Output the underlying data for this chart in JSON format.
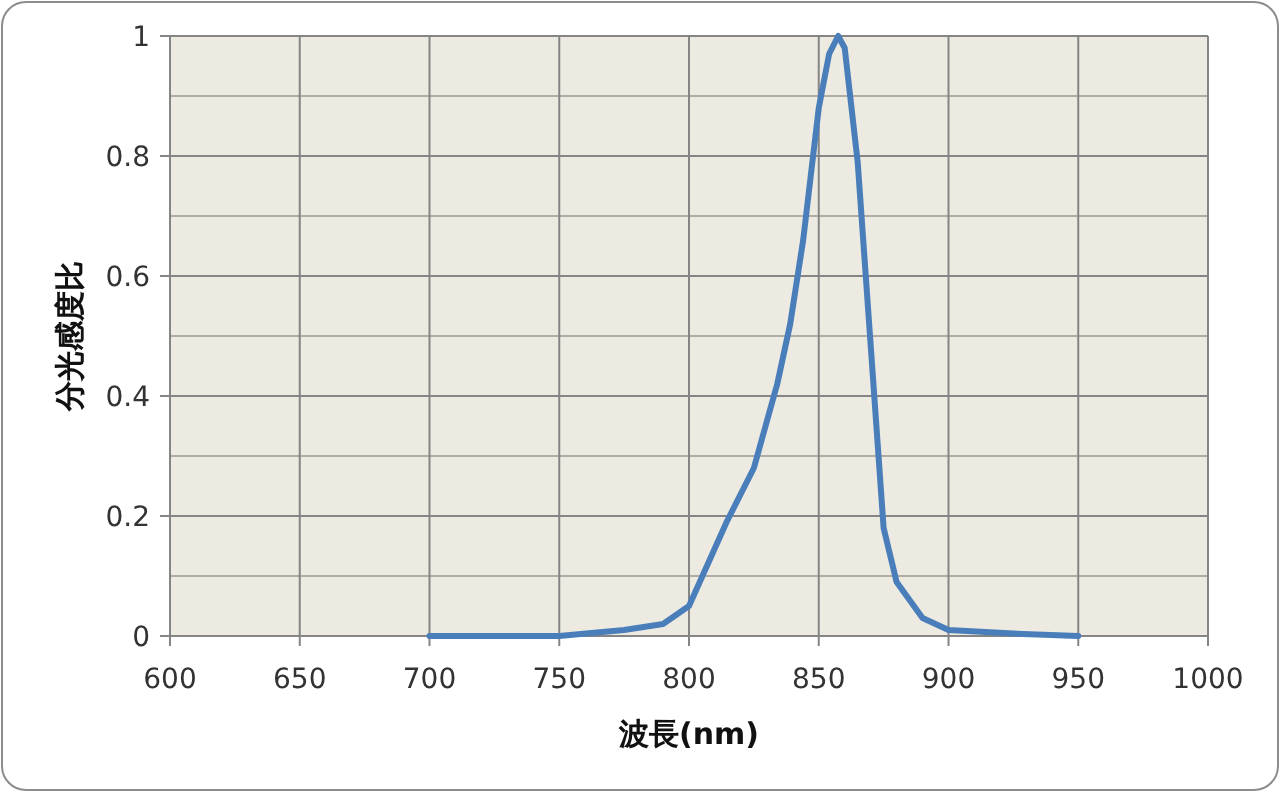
{
  "chart_data": {
    "type": "line",
    "xlabel": "波長(nm)",
    "ylabel": "分光感度比",
    "x": [
      700,
      750,
      775,
      790,
      800,
      814.5,
      825,
      834,
      839,
      844,
      850,
      854,
      857.5,
      860,
      865,
      875,
      880,
      890,
      900,
      925,
      950
    ],
    "series": [
      {
        "color": "#4a7ebb",
        "values": [
          0,
          0,
          0.01,
          0.02,
          0.05,
          0.19,
          0.28,
          0.42,
          0.52,
          0.66,
          0.88,
          0.97,
          1.0,
          0.98,
          0.79,
          0.18,
          0.09,
          0.03,
          0.01,
          0.004,
          0
        ]
      }
    ],
    "xlim": [
      600,
      1000
    ],
    "xticks": [
      600,
      650,
      700,
      750,
      800,
      850,
      900,
      950,
      1000
    ],
    "ylim": [
      0,
      1
    ],
    "yticks": [
      0,
      0.2,
      0.4,
      0.6,
      0.8,
      1
    ],
    "grid": true,
    "marker": "none",
    "line_style": "solid"
  }
}
